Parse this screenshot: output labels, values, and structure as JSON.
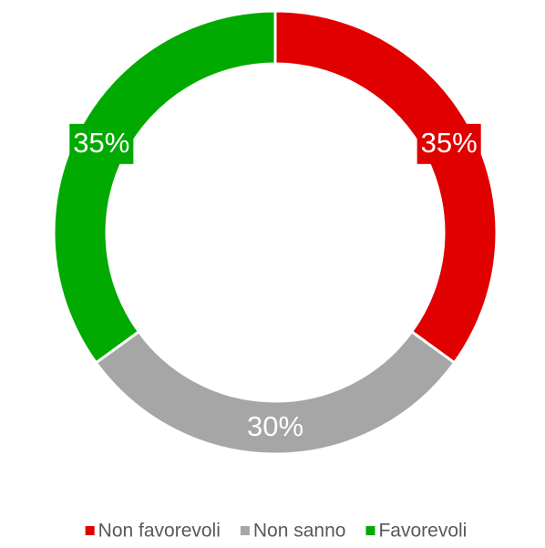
{
  "chart_data": {
    "type": "donut",
    "categories": [
      "Non favorevoli",
      "Non sanno",
      "Favorevoli"
    ],
    "values": [
      35,
      30,
      35
    ],
    "value_labels": [
      "35%",
      "30%",
      "35%"
    ],
    "colors": [
      "#e00000",
      "#a6a6a6",
      "#00aa00"
    ],
    "legend": "bottom"
  }
}
